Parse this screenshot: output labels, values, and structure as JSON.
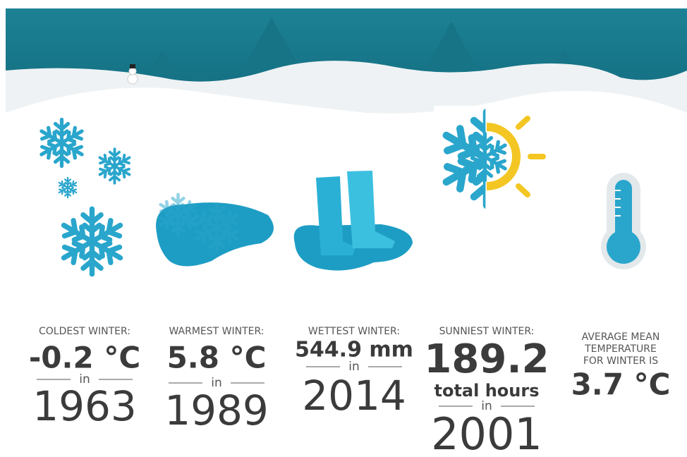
{
  "items": [
    {
      "label": [
        "COLDEST WINTER:"
      ],
      "value": "-0.2 °C",
      "connector": "in",
      "year": "1963"
    },
    {
      "label": [
        "WARMEST WINTER:"
      ],
      "value": "5.8 °C",
      "connector": "in",
      "year": "1989"
    },
    {
      "label": [
        "WETTEST WINTER:"
      ],
      "value": "544.9 mm",
      "connector": "in",
      "year": "2014"
    },
    {
      "label": [
        "SUNNIEST WINTER:"
      ],
      "value": "189.2",
      "unit": "total hours",
      "connector": "in",
      "year": "2001"
    },
    {
      "label": [
        "AVERAGE MEAN",
        "TEMPERATURE",
        "FOR WINTER IS"
      ],
      "value": "3.7 °C"
    }
  ]
}
